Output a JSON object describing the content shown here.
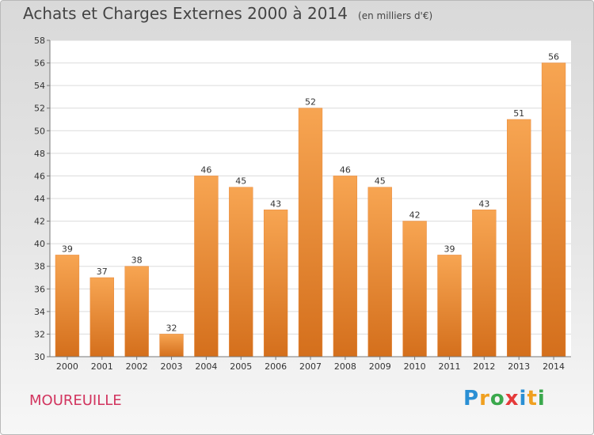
{
  "header": {
    "title": "Achats et Charges Externes 2000 à 2014",
    "unit": "(en milliers d'€)"
  },
  "footer": {
    "commune": "MOUREUILLE",
    "brand": [
      "P",
      "r",
      "o",
      "x",
      "i",
      "t",
      "i"
    ],
    "brand_colors": [
      "#2a8fd4",
      "#f0a020",
      "#3aa84c",
      "#e53a3a",
      "#2a8fd4",
      "#f0a020",
      "#3aa84c"
    ]
  },
  "chart_data": {
    "type": "bar",
    "title": "Achats et Charges Externes 2000 à 2014",
    "subtitle": "(en milliers d'€)",
    "categories": [
      "2000",
      "2001",
      "2002",
      "2003",
      "2004",
      "2005",
      "2006",
      "2007",
      "2008",
      "2009",
      "2010",
      "2011",
      "2012",
      "2013",
      "2014"
    ],
    "values": [
      39,
      37,
      38,
      32,
      46,
      45,
      43,
      52,
      46,
      45,
      42,
      39,
      43,
      51,
      56
    ],
    "ylim": [
      30,
      58
    ],
    "yticks": [
      30,
      32,
      34,
      36,
      38,
      40,
      42,
      44,
      46,
      48,
      50,
      52,
      54,
      56,
      58
    ],
    "grid": true,
    "bar_color_top": "#f7a552",
    "bar_color_bottom": "#d46f1c",
    "xlabel": "",
    "ylabel": ""
  }
}
